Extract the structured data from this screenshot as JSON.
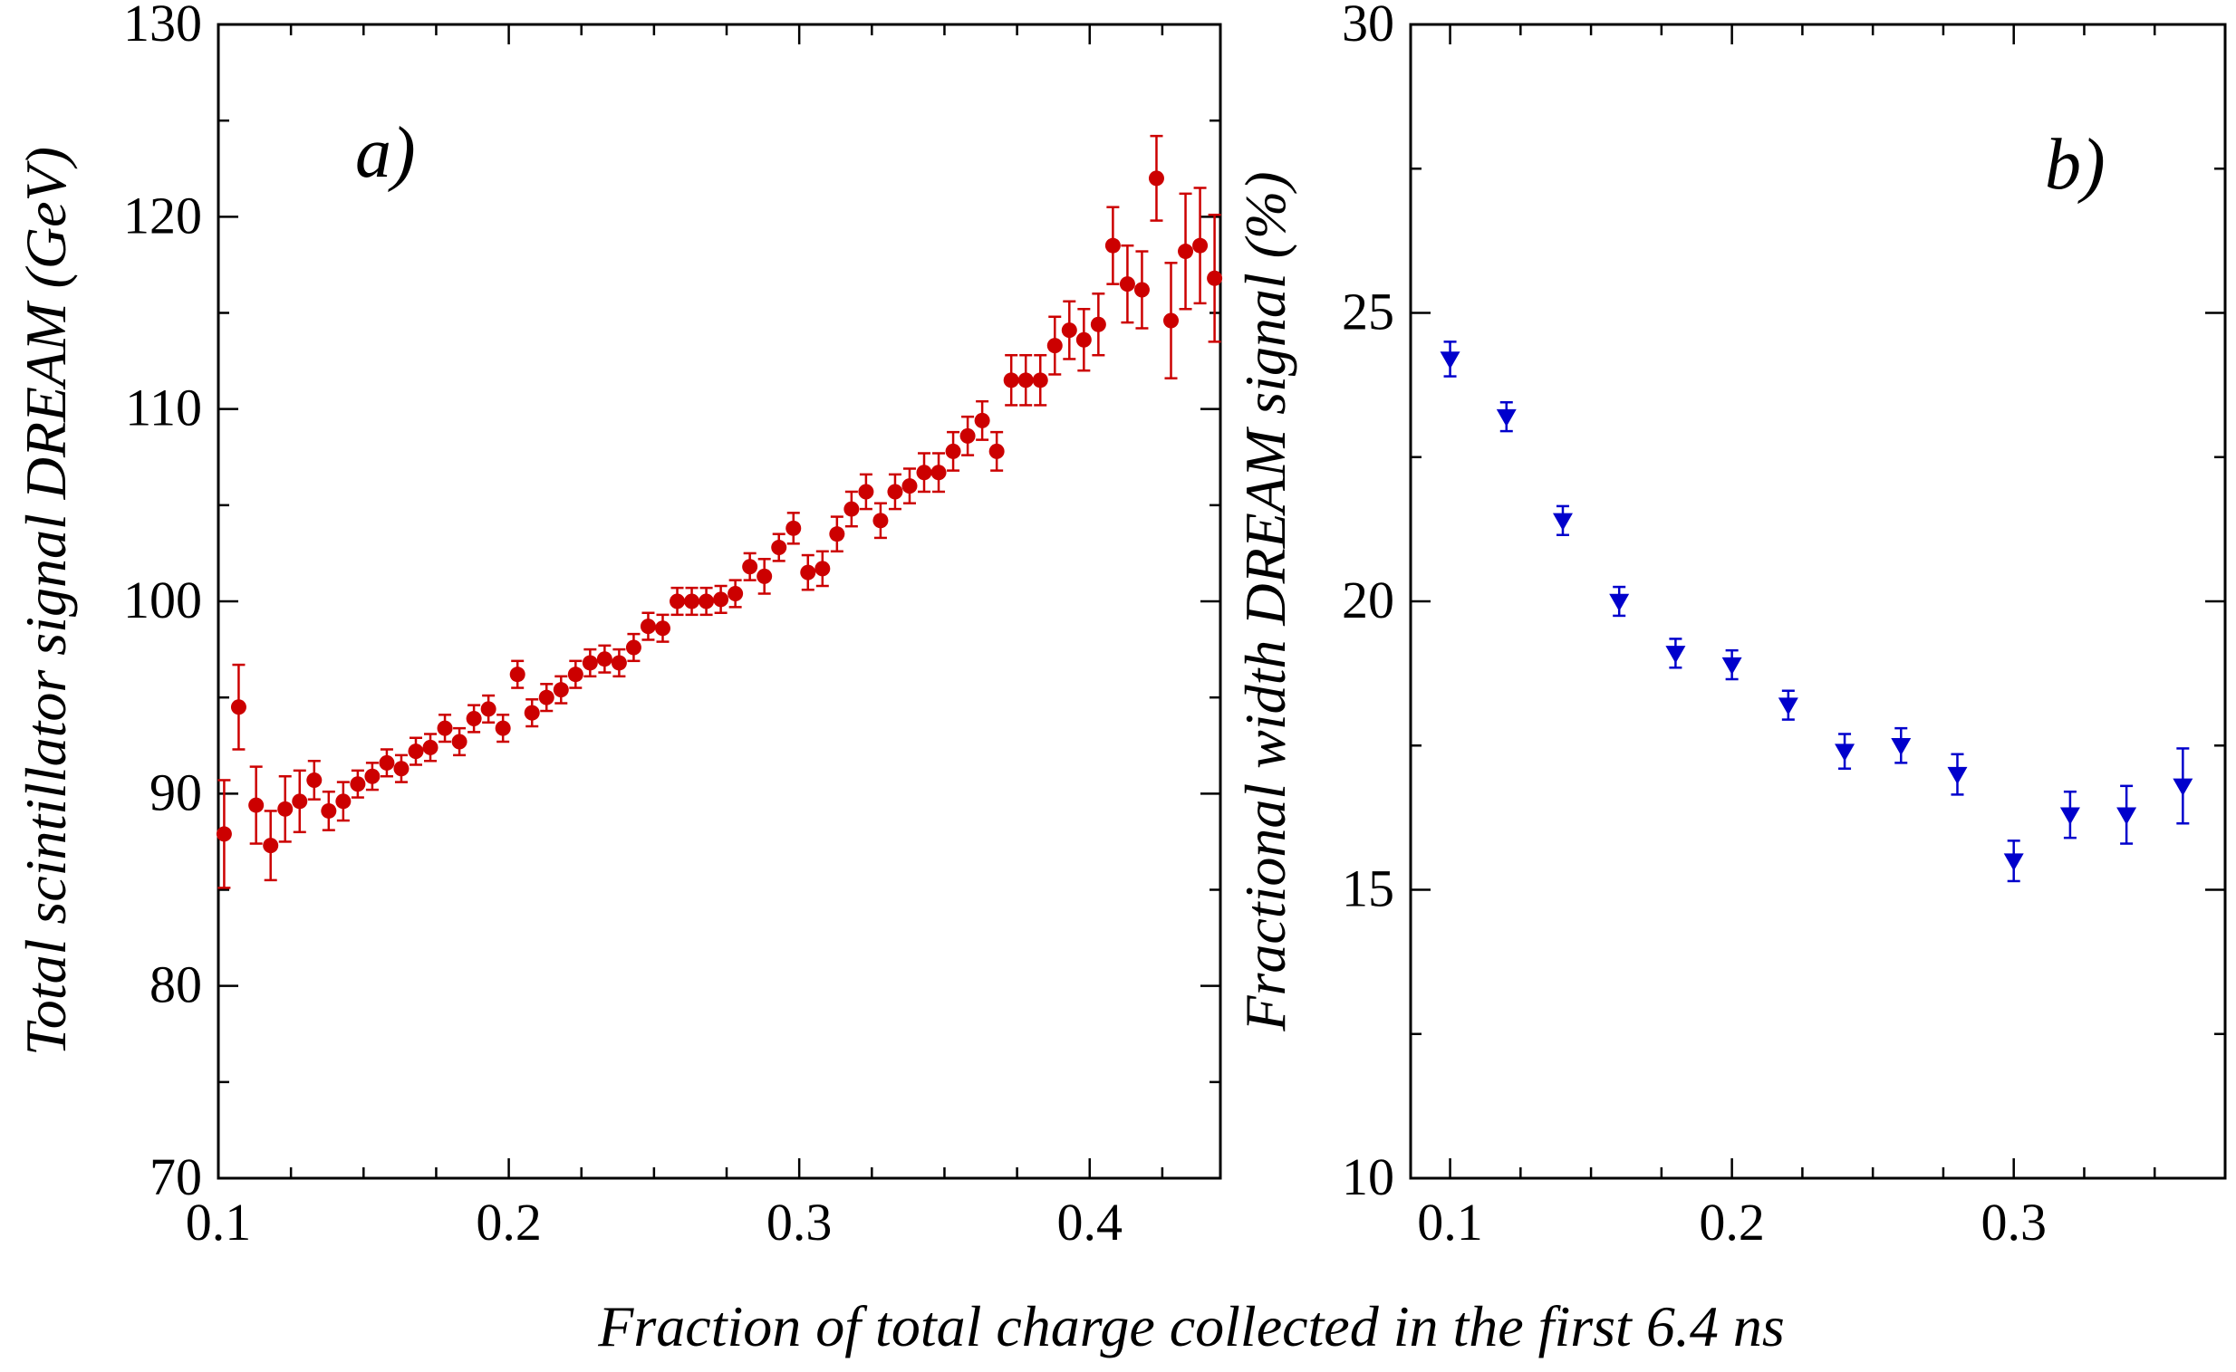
{
  "xlabel": "Fraction of total charge collected in the first 6.4 ns",
  "chart_data": [
    {
      "type": "scatter",
      "panel_label": "a)",
      "ylabel": "Total scintillator signal DREAM (GeV)",
      "xlim": [
        0.1,
        0.445
      ],
      "ylim": [
        70,
        130
      ],
      "xticks": [
        "0.1",
        "0.2",
        "0.3",
        "0.4"
      ],
      "yticks": [
        "70",
        "80",
        "90",
        "100",
        "110",
        "120",
        "130"
      ],
      "color": "#cc0000",
      "marker": "circle",
      "series": [
        {
          "x": [
            0.102,
            0.107,
            0.113,
            0.118,
            0.123,
            0.128,
            0.133,
            0.138,
            0.143,
            0.148,
            0.153,
            0.158,
            0.163,
            0.168,
            0.173,
            0.178,
            0.183,
            0.188,
            0.193,
            0.198,
            0.203,
            0.208,
            0.213,
            0.218,
            0.223,
            0.228,
            0.233,
            0.238,
            0.243,
            0.248,
            0.253,
            0.258,
            0.263,
            0.268,
            0.273,
            0.278,
            0.283,
            0.288,
            0.293,
            0.298,
            0.303,
            0.308,
            0.313,
            0.318,
            0.323,
            0.328,
            0.333,
            0.338,
            0.343,
            0.348,
            0.353,
            0.358,
            0.363,
            0.368,
            0.373,
            0.378,
            0.383,
            0.388,
            0.393,
            0.398,
            0.403,
            0.408,
            0.413,
            0.418,
            0.423,
            0.428,
            0.433,
            0.438,
            0.443
          ],
          "y": [
            87.9,
            94.5,
            89.4,
            87.3,
            89.2,
            89.6,
            90.7,
            89.1,
            89.6,
            90.5,
            90.9,
            91.6,
            91.3,
            92.2,
            92.4,
            93.4,
            92.7,
            93.9,
            94.4,
            93.4,
            96.2,
            94.2,
            95.0,
            95.4,
            96.2,
            96.8,
            97.0,
            96.8,
            97.6,
            98.7,
            98.6,
            100.0,
            100.0,
            100.0,
            100.1,
            100.4,
            101.8,
            101.3,
            102.8,
            103.8,
            101.5,
            101.7,
            103.5,
            104.8,
            105.7,
            104.2,
            105.7,
            106.0,
            106.7,
            106.7,
            107.8,
            108.6,
            109.4,
            107.8,
            111.5,
            111.5,
            111.5,
            113.3,
            114.1,
            113.6,
            114.4,
            118.5,
            116.5,
            116.2,
            122.0,
            114.6,
            118.2,
            118.5,
            116.8
          ],
          "err": [
            2.8,
            2.2,
            2.0,
            1.8,
            1.7,
            1.6,
            1.0,
            1.0,
            1.0,
            0.7,
            0.7,
            0.7,
            0.7,
            0.7,
            0.7,
            0.7,
            0.7,
            0.7,
            0.7,
            0.7,
            0.7,
            0.7,
            0.7,
            0.7,
            0.7,
            0.7,
            0.7,
            0.7,
            0.7,
            0.7,
            0.7,
            0.7,
            0.7,
            0.7,
            0.7,
            0.7,
            0.7,
            0.9,
            0.7,
            0.8,
            0.9,
            0.9,
            0.9,
            0.9,
            0.9,
            0.9,
            0.9,
            0.9,
            1.0,
            1.0,
            1.0,
            1.0,
            1.0,
            1.0,
            1.3,
            1.3,
            1.3,
            1.5,
            1.5,
            1.6,
            1.6,
            2.0,
            2.0,
            2.0,
            2.2,
            3.0,
            3.0,
            3.0,
            3.3
          ]
        }
      ]
    },
    {
      "type": "scatter",
      "panel_label": "b)",
      "ylabel": "Fractional width DREAM signal (%)",
      "xlim": [
        0.086,
        0.375
      ],
      "ylim": [
        10,
        30
      ],
      "xticks": [
        "0.1",
        "0.2",
        "0.3"
      ],
      "yticks": [
        "10",
        "15",
        "20",
        "25",
        "30"
      ],
      "color": "#0000cc",
      "marker": "triangle-down",
      "series": [
        {
          "x": [
            0.1,
            0.12,
            0.14,
            0.16,
            0.18,
            0.2,
            0.22,
            0.24,
            0.26,
            0.28,
            0.3,
            0.32,
            0.34,
            0.36
          ],
          "y": [
            24.2,
            23.2,
            21.4,
            20.0,
            19.1,
            18.9,
            18.2,
            17.4,
            17.5,
            17.0,
            15.5,
            16.3,
            16.3,
            16.8
          ],
          "err": [
            0.3,
            0.25,
            0.25,
            0.25,
            0.25,
            0.25,
            0.25,
            0.3,
            0.3,
            0.35,
            0.35,
            0.4,
            0.5,
            0.65
          ]
        }
      ]
    }
  ]
}
